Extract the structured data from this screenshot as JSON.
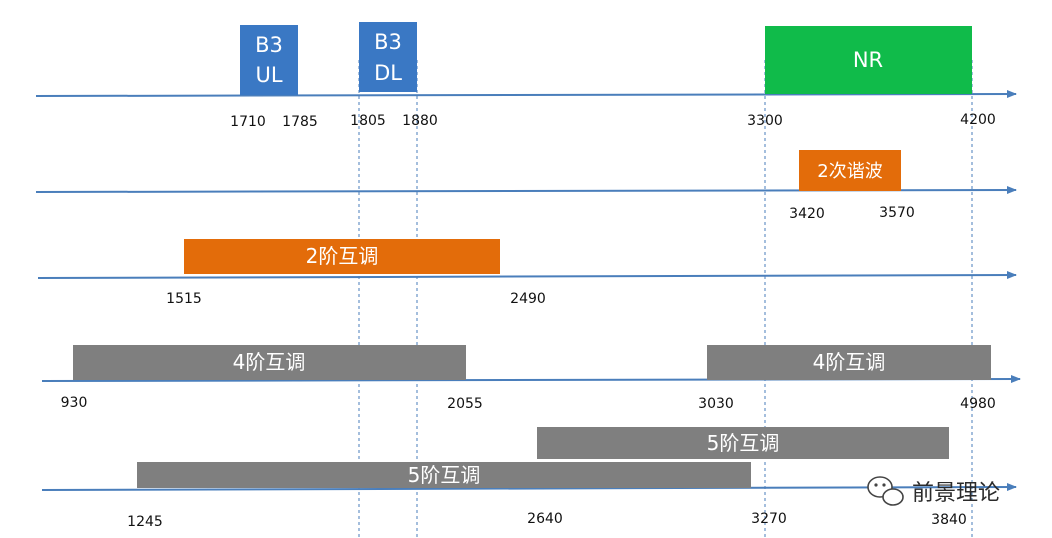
{
  "bands": {
    "b3ul": {
      "line1": "B3",
      "line2": "UL",
      "color": "#3a78c4",
      "low": 1710,
      "high": 1785
    },
    "b3dl": {
      "line1": "B3",
      "line2": "DL",
      "color": "#3a78c4",
      "low": 1805,
      "high": 1880
    },
    "nr": {
      "label": "NR",
      "color": "#10bb4a",
      "low": 3300,
      "high": 4200
    }
  },
  "products": {
    "harmonic2": {
      "label": "2次谐波",
      "color": "#e36c0a",
      "low": 3420,
      "high": 3570
    },
    "imd2": {
      "label": "2阶互调",
      "color": "#e36c0a",
      "low": 1515,
      "high": 2490
    },
    "imd4_low": {
      "label": "4阶互调",
      "color": "#7f7f7f",
      "low": 930,
      "high": 2055
    },
    "imd4_high": {
      "label": "4阶互调",
      "color": "#7f7f7f",
      "low": 3030,
      "high": 4980
    },
    "imd5_high": {
      "label": "5阶互调",
      "color": "#7f7f7f",
      "low": 2640,
      "high": 3840
    },
    "imd5_low": {
      "label": "5阶互调",
      "color": "#7f7f7f",
      "low": 1245,
      "high": 3270
    }
  },
  "ticks": {
    "row1": [
      "1710",
      "1785",
      "1805",
      "1880",
      "3300",
      "4200"
    ],
    "row2": [
      "3420",
      "3570"
    ],
    "row3": [
      "1515",
      "2490"
    ],
    "row4": [
      "930",
      "2055",
      "3030",
      "4980"
    ],
    "row5": [
      "1245",
      "2640",
      "3270",
      "3840"
    ]
  },
  "colors": {
    "axis": "#4a7ebb",
    "guide": "#4a7ebb"
  },
  "watermark": {
    "text": "前景理论",
    "icon": "wechat-icon"
  }
}
